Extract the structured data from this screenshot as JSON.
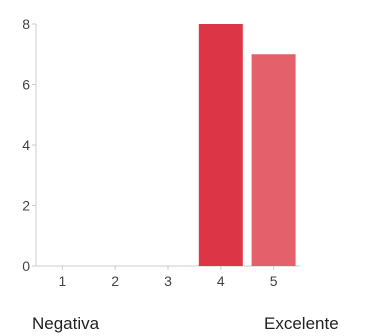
{
  "chart_data": {
    "type": "bar",
    "categories": [
      "1",
      "2",
      "3",
      "4",
      "5"
    ],
    "values": [
      0,
      0,
      0,
      8,
      7
    ],
    "ylim": [
      0,
      8
    ],
    "yticks": [
      0,
      2,
      4,
      6,
      8
    ],
    "grid": false,
    "bar_colors": [
      "#dc3545",
      "#dc3545",
      "#dc3545",
      "#dc3545",
      "#e4606a"
    ],
    "axis_color": "#cccccc"
  },
  "scale_labels": {
    "low": "Negativa",
    "high": "Excelente"
  }
}
